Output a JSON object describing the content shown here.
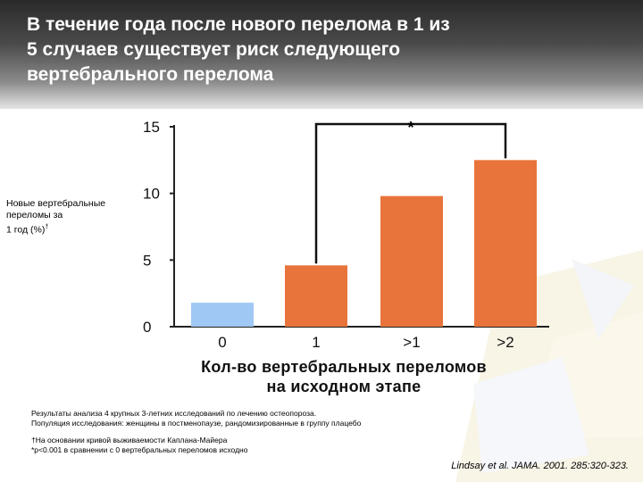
{
  "title": {
    "lines": [
      "В течение года после нового перелома в 1 из",
      "5 случаев существует риск следующего",
      "вертебрального перелома"
    ]
  },
  "chart_data": {
    "type": "bar",
    "title": "",
    "ylabel_lines": [
      "Новые вертебральные",
      "переломы за",
      "1 год (%)"
    ],
    "ylabel_mark": "†",
    "xlabel_lines": [
      "Кол-во вертебральных переломов",
      "на исходном этапе"
    ],
    "categories": [
      "0",
      "1",
      ">1",
      ">2"
    ],
    "values": [
      1.8,
      4.6,
      9.8,
      12.5
    ],
    "bar_colors": [
      "#9fc8f5",
      "#e8743b",
      "#e8743b",
      "#e8743b"
    ],
    "ylim": [
      0,
      15
    ],
    "yticks": [
      "0",
      "5",
      "10",
      "15"
    ],
    "grid": false,
    "legend": "none",
    "significance_mark": "*"
  },
  "notes": {
    "line1": "Результаты анализа 4 крупных 3-летних исследований по лечению остеопороза.",
    "line2": "Популяция исследования: женщины в постменопаузе, рандомизированные в группу плацебо",
    "line3": "†На основании кривой выживаемости Каплана-Майера",
    "line4": "*p<0.001 в сравнении с 0 вертебральных переломов исходно"
  },
  "citation": "Lindsay et al. JAMA. 2001. 285:320-323."
}
